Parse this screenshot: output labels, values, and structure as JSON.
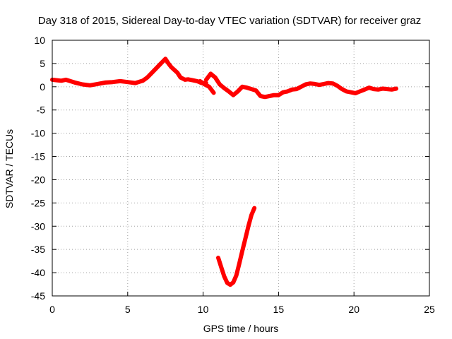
{
  "chart_data": {
    "type": "line",
    "title": "Day 318 of 2015, Sidereal Day-to-day VTEC variation (SDTVAR) for receiver graz",
    "xlabel": "GPS time / hours",
    "ylabel": "SDTVAR / TECUs",
    "xlim": [
      0,
      25
    ],
    "ylim": [
      -45,
      10
    ],
    "xticks": [
      0,
      5,
      10,
      15,
      20,
      25
    ],
    "yticks": [
      10,
      5,
      0,
      -5,
      -10,
      -15,
      -20,
      -25,
      -30,
      -35,
      -40,
      -45
    ],
    "grid": true,
    "legend": "none",
    "series_color": "#ff0000",
    "series": [
      {
        "x": [
          0,
          0.3,
          0.6,
          0.9,
          1.2,
          1.5,
          2.0,
          2.5,
          3.0,
          3.5,
          4.0,
          4.5,
          5.0,
          5.5,
          6.0,
          6.3,
          6.6,
          6.9,
          7.2,
          7.5,
          7.7,
          7.9,
          8.1,
          8.3,
          8.5,
          8.8,
          9.0,
          9.3,
          9.6,
          9.9,
          10.2
        ],
        "y": [
          1.5,
          1.4,
          1.3,
          1.5,
          1.2,
          0.9,
          0.5,
          0.3,
          0.6,
          0.9,
          1.0,
          1.2,
          1.0,
          0.8,
          1.3,
          2.0,
          3.0,
          4.0,
          5.0,
          6.0,
          5.0,
          4.2,
          3.6,
          3.0,
          2.0,
          1.5,
          1.6,
          1.4,
          1.2,
          0.8,
          0.8
        ]
      },
      {
        "x": [
          10.2,
          10.5,
          10.8,
          11.1,
          11.4,
          11.7,
          12.0,
          12.3,
          12.6,
          12.9,
          13.2,
          13.5,
          13.8,
          14.1,
          14.4,
          14.7,
          15.0,
          15.3,
          15.6,
          15.9,
          16.2,
          16.5,
          16.8,
          17.1,
          17.4,
          17.7,
          18.0,
          18.3,
          18.6,
          18.9,
          19.2,
          19.5,
          19.8,
          20.1,
          20.4,
          20.7,
          21.0,
          21.3,
          21.6,
          21.9,
          22.2,
          22.5,
          22.8
        ],
        "y": [
          1.5,
          2.8,
          2.0,
          0.5,
          -0.3,
          -1.0,
          -1.8,
          -1.0,
          0.0,
          -0.2,
          -0.5,
          -0.8,
          -2.0,
          -2.2,
          -2.0,
          -1.8,
          -1.8,
          -1.2,
          -1.0,
          -0.6,
          -0.5,
          0.0,
          0.5,
          0.7,
          0.6,
          0.4,
          0.6,
          0.8,
          0.7,
          0.2,
          -0.5,
          -1.0,
          -1.2,
          -1.4,
          -1.0,
          -0.6,
          -0.2,
          -0.5,
          -0.6,
          -0.4,
          -0.5,
          -0.6,
          -0.4
        ]
      },
      {
        "x": [
          9.8,
          10.1,
          10.4,
          10.7
        ],
        "y": [
          1.2,
          0.5,
          0.0,
          -1.3
        ]
      },
      {
        "x": [
          11.0,
          11.2,
          11.4,
          11.6,
          11.8,
          12.0,
          12.2,
          12.4,
          12.6,
          12.8,
          13.0,
          13.2,
          13.4
        ],
        "y": [
          -36.8,
          -38.8,
          -40.8,
          -42.2,
          -42.6,
          -42.1,
          -40.6,
          -38.0,
          -35.3,
          -32.7,
          -30.0,
          -27.6,
          -26.1
        ]
      }
    ]
  }
}
